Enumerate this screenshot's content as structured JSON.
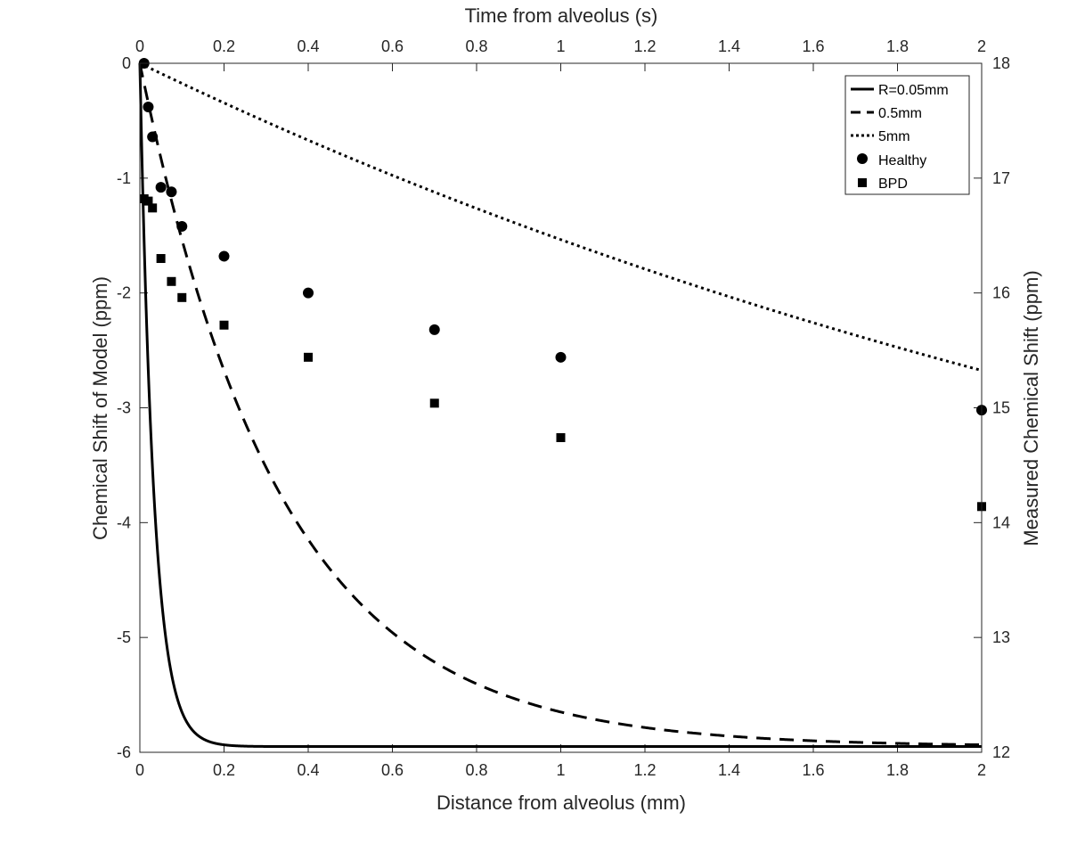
{
  "chart_data": {
    "type": "line",
    "xlabel_bottom": "Distance from alveolus (mm)",
    "xlabel_top": "Time from alveolus (s)",
    "ylabel_left": "Chemical Shift of Model (ppm)",
    "ylabel_right": "Measured Chemical Shift (ppm)",
    "xlim": [
      0,
      2
    ],
    "ylim_left": [
      -6,
      0
    ],
    "ylim_right": [
      12,
      18
    ],
    "x_ticks": [
      "0",
      "0.2",
      "0.4",
      "0.6",
      "0.8",
      "1",
      "1.2",
      "1.4",
      "1.6",
      "1.8",
      "2"
    ],
    "x_tick_values": [
      0,
      0.2,
      0.4,
      0.6,
      0.8,
      1,
      1.2,
      1.4,
      1.6,
      1.8,
      2
    ],
    "y_left_ticks": [
      "0",
      "-1",
      "-2",
      "-3",
      "-4",
      "-5",
      "-6"
    ],
    "y_left_tick_values": [
      0,
      -1,
      -2,
      -3,
      -4,
      -5,
      -6
    ],
    "y_right_ticks": [
      "18",
      "17",
      "16",
      "15",
      "14",
      "13",
      "12"
    ],
    "y_right_tick_values": [
      18,
      17,
      16,
      15,
      14,
      13,
      12
    ],
    "model_series": [
      {
        "name": "R=0.05mm",
        "style": "solid",
        "asymptote": -5.95,
        "scale_mm": 0.0335
      },
      {
        "name": "0.5mm",
        "style": "dashed",
        "asymptote": -5.95,
        "scale_mm": 0.335
      },
      {
        "name": "5mm",
        "style": "dotted",
        "asymptote": -5.95,
        "scale_mm": 3.35
      }
    ],
    "measured_series": [
      {
        "name": "Healthy",
        "marker": "circle",
        "x": [
          0.01,
          0.02,
          0.03,
          0.05,
          0.075,
          0.1,
          0.2,
          0.4,
          0.7,
          1.0,
          2.0
        ],
        "y": [
          18.0,
          17.62,
          17.36,
          16.92,
          16.88,
          16.58,
          16.32,
          16.0,
          15.68,
          15.44,
          14.98
        ]
      },
      {
        "name": "BPD",
        "marker": "square",
        "x": [
          0.01,
          0.02,
          0.03,
          0.05,
          0.075,
          0.1,
          0.2,
          0.4,
          0.7,
          1.0,
          2.0
        ],
        "y": [
          16.82,
          16.8,
          16.74,
          16.3,
          16.1,
          15.96,
          15.72,
          15.44,
          15.04,
          14.74,
          14.14
        ]
      }
    ],
    "legend_position": "top-right",
    "grid": false
  }
}
